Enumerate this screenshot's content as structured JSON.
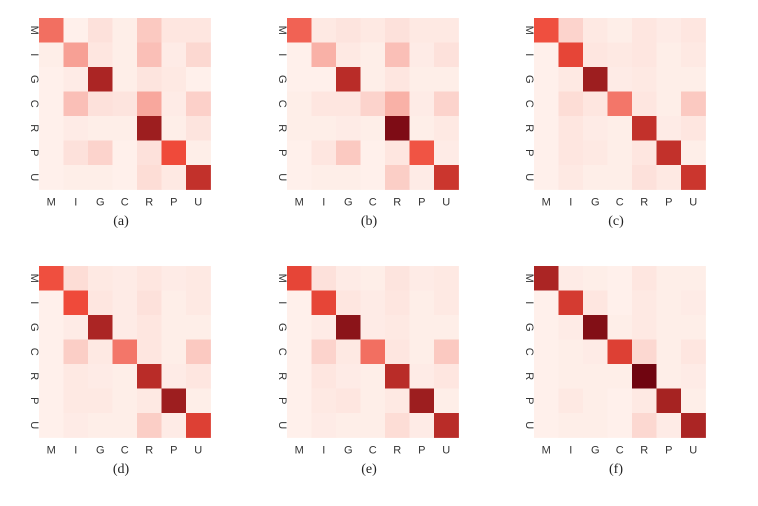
{
  "colors": {
    "low": "#fff5f0",
    "mid": "#ef4a3a",
    "high": "#67000d"
  },
  "chart_data": [
    {
      "type": "heatmap",
      "caption": "(a)",
      "x_labels": [
        "M",
        "I",
        "G",
        "C",
        "R",
        "P",
        "U"
      ],
      "y_labels": [
        "M",
        "I",
        "G",
        "C",
        "R",
        "P",
        "U"
      ],
      "values": [
        [
          0.55,
          0.02,
          0.08,
          0.03,
          0.18,
          0.06,
          0.06
        ],
        [
          0.03,
          0.35,
          0.06,
          0.03,
          0.22,
          0.04,
          0.12
        ],
        [
          0.02,
          0.04,
          0.85,
          0.03,
          0.07,
          0.05,
          0.02
        ],
        [
          0.02,
          0.22,
          0.08,
          0.07,
          0.32,
          0.04,
          0.15
        ],
        [
          0.02,
          0.04,
          0.03,
          0.03,
          0.88,
          0.03,
          0.07
        ],
        [
          0.02,
          0.08,
          0.14,
          0.02,
          0.08,
          0.7,
          0.03
        ],
        [
          0.02,
          0.03,
          0.03,
          0.02,
          0.1,
          0.05,
          0.8
        ]
      ]
    },
    {
      "type": "heatmap",
      "caption": "(b)",
      "x_labels": [
        "M",
        "I",
        "G",
        "C",
        "R",
        "P",
        "U"
      ],
      "y_labels": [
        "M",
        "I",
        "G",
        "C",
        "R",
        "P",
        "U"
      ],
      "values": [
        [
          0.6,
          0.05,
          0.07,
          0.05,
          0.08,
          0.05,
          0.05
        ],
        [
          0.02,
          0.28,
          0.05,
          0.03,
          0.22,
          0.04,
          0.08
        ],
        [
          0.02,
          0.02,
          0.82,
          0.03,
          0.06,
          0.03,
          0.03
        ],
        [
          0.03,
          0.06,
          0.06,
          0.14,
          0.28,
          0.04,
          0.14
        ],
        [
          0.03,
          0.03,
          0.04,
          0.03,
          0.95,
          0.03,
          0.05
        ],
        [
          0.02,
          0.06,
          0.18,
          0.02,
          0.06,
          0.66,
          0.04
        ],
        [
          0.02,
          0.03,
          0.03,
          0.02,
          0.16,
          0.04,
          0.78
        ]
      ]
    },
    {
      "type": "heatmap",
      "caption": "(c)",
      "x_labels": [
        "M",
        "I",
        "G",
        "C",
        "R",
        "P",
        "U"
      ],
      "y_labels": [
        "M",
        "I",
        "G",
        "C",
        "R",
        "P",
        "U"
      ],
      "values": [
        [
          0.68,
          0.14,
          0.05,
          0.03,
          0.06,
          0.04,
          0.06
        ],
        [
          0.02,
          0.72,
          0.06,
          0.05,
          0.06,
          0.03,
          0.05
        ],
        [
          0.02,
          0.05,
          0.88,
          0.04,
          0.05,
          0.03,
          0.03
        ],
        [
          0.02,
          0.1,
          0.06,
          0.52,
          0.06,
          0.03,
          0.18
        ],
        [
          0.02,
          0.06,
          0.04,
          0.03,
          0.8,
          0.04,
          0.06
        ],
        [
          0.02,
          0.06,
          0.05,
          0.03,
          0.06,
          0.8,
          0.03
        ],
        [
          0.02,
          0.05,
          0.03,
          0.03,
          0.08,
          0.05,
          0.78
        ]
      ]
    },
    {
      "type": "heatmap",
      "caption": "(d)",
      "x_labels": [
        "M",
        "I",
        "G",
        "C",
        "R",
        "P",
        "U"
      ],
      "y_labels": [
        "M",
        "I",
        "G",
        "C",
        "R",
        "P",
        "U"
      ],
      "values": [
        [
          0.68,
          0.1,
          0.05,
          0.04,
          0.06,
          0.04,
          0.05
        ],
        [
          0.02,
          0.7,
          0.06,
          0.04,
          0.08,
          0.03,
          0.05
        ],
        [
          0.02,
          0.04,
          0.85,
          0.04,
          0.06,
          0.03,
          0.03
        ],
        [
          0.02,
          0.16,
          0.05,
          0.52,
          0.06,
          0.03,
          0.18
        ],
        [
          0.02,
          0.05,
          0.04,
          0.03,
          0.82,
          0.04,
          0.06
        ],
        [
          0.02,
          0.05,
          0.05,
          0.03,
          0.05,
          0.88,
          0.03
        ],
        [
          0.02,
          0.04,
          0.03,
          0.03,
          0.16,
          0.04,
          0.74
        ]
      ]
    },
    {
      "type": "heatmap",
      "caption": "(e)",
      "x_labels": [
        "M",
        "I",
        "G",
        "C",
        "R",
        "P",
        "U"
      ],
      "y_labels": [
        "M",
        "I",
        "G",
        "C",
        "R",
        "P",
        "U"
      ],
      "values": [
        [
          0.72,
          0.08,
          0.04,
          0.03,
          0.07,
          0.04,
          0.05
        ],
        [
          0.02,
          0.72,
          0.06,
          0.04,
          0.06,
          0.03,
          0.05
        ],
        [
          0.02,
          0.04,
          0.92,
          0.04,
          0.05,
          0.03,
          0.03
        ],
        [
          0.02,
          0.14,
          0.05,
          0.55,
          0.06,
          0.03,
          0.18
        ],
        [
          0.02,
          0.06,
          0.04,
          0.03,
          0.82,
          0.04,
          0.06
        ],
        [
          0.02,
          0.05,
          0.06,
          0.03,
          0.05,
          0.88,
          0.03
        ],
        [
          0.02,
          0.04,
          0.03,
          0.03,
          0.1,
          0.04,
          0.82
        ]
      ]
    },
    {
      "type": "heatmap",
      "caption": "(f)",
      "x_labels": [
        "M",
        "I",
        "G",
        "C",
        "R",
        "P",
        "U"
      ],
      "y_labels": [
        "M",
        "I",
        "G",
        "C",
        "R",
        "P",
        "U"
      ],
      "values": [
        [
          0.85,
          0.04,
          0.03,
          0.02,
          0.06,
          0.03,
          0.03
        ],
        [
          0.02,
          0.76,
          0.06,
          0.02,
          0.05,
          0.03,
          0.04
        ],
        [
          0.02,
          0.04,
          0.94,
          0.03,
          0.05,
          0.03,
          0.03
        ],
        [
          0.02,
          0.03,
          0.04,
          0.74,
          0.12,
          0.03,
          0.06
        ],
        [
          0.02,
          0.03,
          0.03,
          0.03,
          0.98,
          0.03,
          0.04
        ],
        [
          0.02,
          0.05,
          0.03,
          0.02,
          0.05,
          0.86,
          0.03
        ],
        [
          0.02,
          0.03,
          0.03,
          0.02,
          0.12,
          0.04,
          0.85
        ]
      ]
    }
  ]
}
